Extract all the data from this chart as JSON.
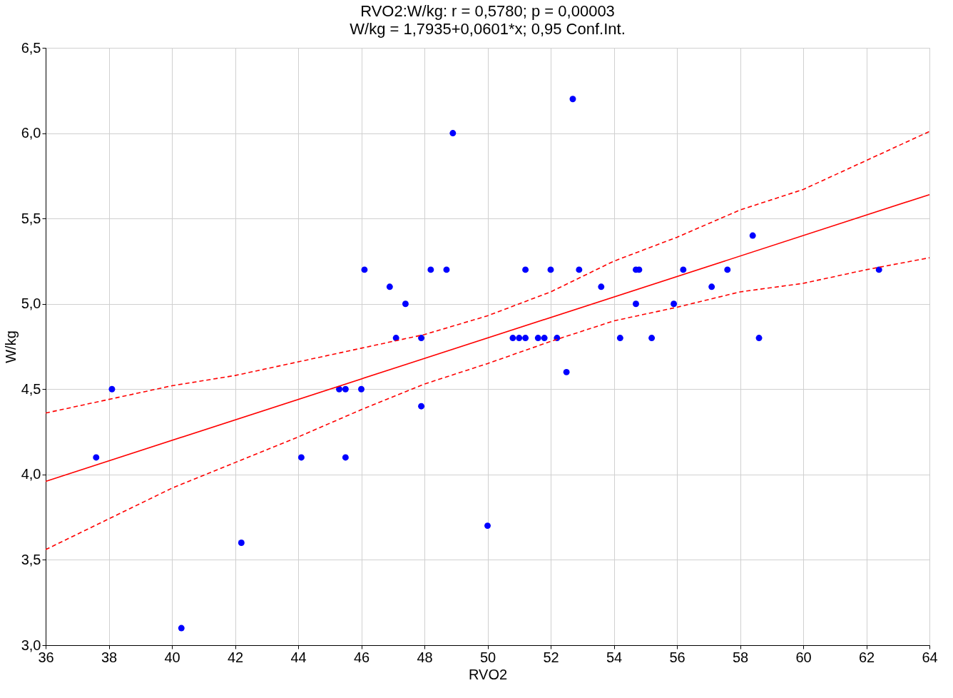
{
  "chart_data": {
    "type": "scatter",
    "title": "RVO2:W/kg:    r = 0,5780; p = 0,00003",
    "subtitle": "W/kg = 1,7935+0,0601*x; 0,95 Conf.Int.",
    "xlabel": "RVO2",
    "ylabel": "W/kg",
    "xlim": [
      36,
      64
    ],
    "xticks": [
      36,
      38,
      40,
      42,
      44,
      46,
      48,
      50,
      52,
      54,
      56,
      58,
      60,
      62,
      64
    ],
    "ylim": [
      3.0,
      6.5
    ],
    "yticks": [
      {
        "value": 3.0,
        "label": "3,0"
      },
      {
        "value": 3.5,
        "label": "3,5"
      },
      {
        "value": 4.0,
        "label": "4,0"
      },
      {
        "value": 4.5,
        "label": "4,5"
      },
      {
        "value": 5.0,
        "label": "5,0"
      },
      {
        "value": 5.5,
        "label": "5,5"
      },
      {
        "value": 6.0,
        "label": "6,0"
      },
      {
        "value": 6.5,
        "label": "6,5"
      }
    ],
    "grid": true,
    "series": [
      {
        "marker": "circle",
        "color": "#0000ff",
        "x": [
          37.6,
          38.1,
          40.3,
          42.2,
          44.1,
          45.3,
          45.5,
          45.5,
          46.0,
          46.1,
          46.9,
          47.1,
          47.4,
          47.9,
          47.9,
          48.2,
          48.7,
          48.9,
          50.0,
          50.8,
          51.0,
          51.2,
          51.2,
          51.6,
          51.8,
          52.0,
          52.2,
          52.5,
          52.7,
          52.9,
          53.6,
          54.2,
          54.7,
          54.8,
          54.7,
          55.2,
          55.9,
          56.2,
          57.1,
          57.6,
          58.4,
          58.6,
          62.4
        ],
        "values": [
          4.1,
          4.5,
          3.1,
          3.6,
          4.1,
          4.5,
          4.5,
          4.1,
          4.5,
          5.2,
          5.1,
          4.8,
          5.0,
          4.8,
          4.4,
          5.2,
          5.2,
          6.0,
          3.7,
          4.8,
          4.8,
          4.8,
          5.2,
          4.8,
          4.8,
          5.2,
          4.8,
          4.6,
          6.2,
          5.2,
          5.1,
          4.8,
          5.2,
          5.2,
          5.0,
          4.8,
          5.0,
          5.2,
          5.1,
          5.2,
          5.4,
          4.8,
          5.2
        ]
      },
      {
        "type": "line",
        "color": "#ff0000",
        "line_style": "solid",
        "marker": "none",
        "x": [
          36,
          64
        ],
        "values": [
          3.96,
          5.64
        ]
      },
      {
        "type": "line",
        "color": "#ff0000",
        "line_style": "dashed",
        "marker": "none",
        "x": [
          36,
          38,
          40,
          42,
          44,
          46,
          48,
          50,
          52,
          54,
          56,
          58,
          60,
          62,
          64
        ],
        "values": [
          3.56,
          3.74,
          3.92,
          4.07,
          4.22,
          4.38,
          4.53,
          4.65,
          4.78,
          4.9,
          4.98,
          5.07,
          5.12,
          5.2,
          5.27
        ]
      },
      {
        "type": "line",
        "color": "#ff0000",
        "line_style": "dashed",
        "marker": "none",
        "x": [
          36,
          38,
          40,
          42,
          44,
          46,
          48,
          50,
          52,
          54,
          56,
          58,
          60,
          62,
          64
        ],
        "values": [
          4.36,
          4.44,
          4.52,
          4.58,
          4.66,
          4.74,
          4.82,
          4.93,
          5.07,
          5.25,
          5.39,
          5.55,
          5.67,
          5.84,
          6.01
        ]
      }
    ]
  }
}
